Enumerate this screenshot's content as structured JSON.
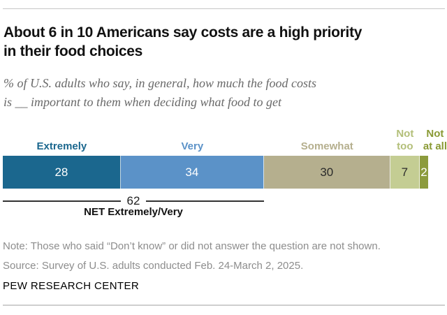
{
  "header": {
    "title_line1": "About 6 in 10 Americans say costs are a high priority",
    "title_line2": "in their food choices",
    "subtitle_line1": "% of U.S. adults who say, in general, how much the food costs",
    "subtitle_line2": "is __ important to them when deciding what food to get"
  },
  "chart_data": {
    "type": "bar",
    "orientation": "horizontal-stacked",
    "title": "About 6 in 10 Americans say costs are a high priority in their food choices",
    "subtitle": "% of U.S. adults who say, in general, how much the food costs is __ important to them when deciding what food to get",
    "categories": [
      "Extremely",
      "Very",
      "Somewhat",
      "Not too",
      "Not at all"
    ],
    "label_lines": [
      [
        "Extremely"
      ],
      [
        "Very"
      ],
      [
        "Somewhat"
      ],
      [
        "Not",
        "too"
      ],
      [
        "Not",
        "at all"
      ]
    ],
    "values": [
      28,
      34,
      30,
      7,
      2
    ],
    "colors": [
      "#1b678e",
      "#5b92c8",
      "#b5af8e",
      "#c4cd93",
      "#8c9b3d"
    ],
    "label_colors": [
      "#1b678e",
      "#5b92c8",
      "#b5af8e",
      "#b3bf79",
      "#8a9a35"
    ],
    "value_text_colors": [
      "#ffffff",
      "#ffffff",
      "#2b2b2b",
      "#2b2b2b",
      "#ffffff"
    ],
    "xlim": [
      0,
      101
    ],
    "legend_position": "above-bar",
    "grid": false,
    "net": {
      "value": 62,
      "label": "NET Extremely/Very",
      "span_categories": [
        "Extremely",
        "Very"
      ]
    }
  },
  "footer": {
    "note": "Note: Those who said “Don’t know” or did not answer the question are not shown.",
    "source": "Source: Survey of U.S. adults conducted Feb. 24-March 2, 2025.",
    "brand": "PEW RESEARCH CENTER"
  }
}
